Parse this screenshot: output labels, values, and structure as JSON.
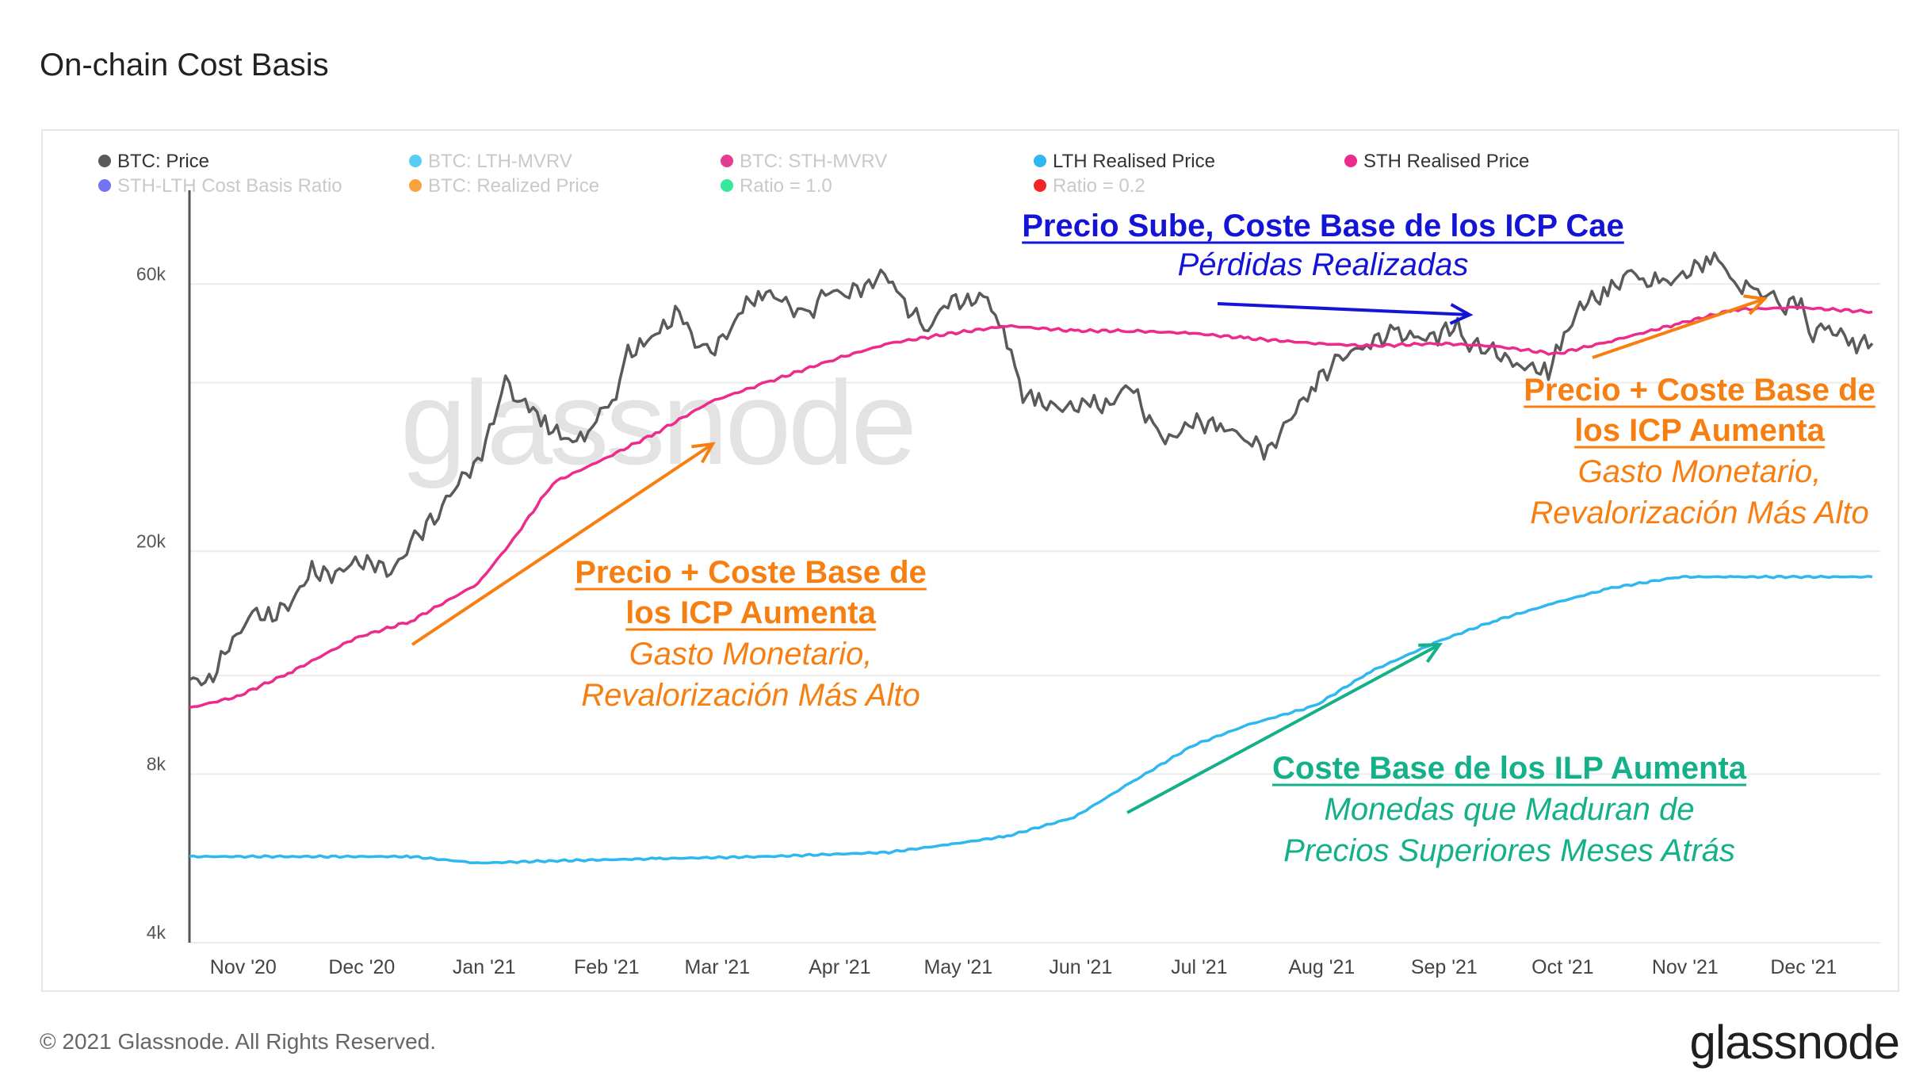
{
  "header": {
    "title": "On-chain Cost Basis"
  },
  "footer": {
    "copyright": "© 2021 Glassnode. All Rights Reserved.",
    "logo": "glassnode"
  },
  "watermark": "glassnode",
  "legend": [
    {
      "label": "BTC: Price",
      "color": "#5a5a5a",
      "active": true
    },
    {
      "label": "BTC: LTH-MVRV",
      "color": "#39c4f5",
      "active": false
    },
    {
      "label": "BTC: STH-MVRV",
      "color": "#e0197c",
      "active": false
    },
    {
      "label": "LTH Realised Price",
      "color": "#2fb8f0",
      "active": true
    },
    {
      "label": "STH Realised Price",
      "color": "#ec2b8c",
      "active": true
    },
    {
      "label": "STH-LTH Cost Basis Ratio",
      "color": "#5b5bf2",
      "active": false
    },
    {
      "label": "BTC: Realized Price",
      "color": "#f7931a",
      "active": false
    },
    {
      "label": "Ratio = 1.0",
      "color": "#12e48a",
      "active": false
    },
    {
      "label": "Ratio = 0.2",
      "color": "#f00000",
      "active": false
    }
  ],
  "annotations": {
    "blue": {
      "bold": "Precio Sube, Coste Base de los  ICP Cae",
      "italic": "Pérdidas Realizadas",
      "color": "#1414d6"
    },
    "orange_left": {
      "bold1": "Precio + Coste Base de",
      "bold2": "los ICP Aumenta",
      "italic1": "Gasto Monetario,",
      "italic2": "Revalorización Más Alto",
      "color": "#f77f12"
    },
    "orange_right": {
      "bold1": "Precio + Coste Base de",
      "bold2": "los ICP Aumenta",
      "italic1": "Gasto Monetario,",
      "italic2": "Revalorización Más Alto",
      "color": "#f77f12"
    },
    "green": {
      "bold": "Coste Base de los ILP Aumenta",
      "italic1": "Monedas que Maduran de",
      "italic2": "Precios Superiores Meses Atrás",
      "color": "#14b089"
    }
  },
  "chart_data": {
    "type": "line",
    "y_scale": "log",
    "ylim": [
      4000,
      80000
    ],
    "y_ticks": [
      {
        "value": 4000,
        "label": "4k"
      },
      {
        "value": 8000,
        "label": "8k"
      },
      {
        "value": 20000,
        "label": "20k"
      },
      {
        "value": 60000,
        "label": "60k"
      }
    ],
    "x_range": [
      "2020-10-20",
      "2021-12-22"
    ],
    "x_ticks": [
      {
        "date": "2020-11-01",
        "label": "Nov '20"
      },
      {
        "date": "2020-12-01",
        "label": "Dec '20"
      },
      {
        "date": "2021-01-01",
        "label": "Jan '21"
      },
      {
        "date": "2021-02-01",
        "label": "Feb '21"
      },
      {
        "date": "2021-03-01",
        "label": "Mar '21"
      },
      {
        "date": "2021-04-01",
        "label": "Apr '21"
      },
      {
        "date": "2021-05-01",
        "label": "May '21"
      },
      {
        "date": "2021-06-01",
        "label": "Jun '21"
      },
      {
        "date": "2021-07-01",
        "label": "Jul '21"
      },
      {
        "date": "2021-08-01",
        "label": "Aug '21"
      },
      {
        "date": "2021-09-01",
        "label": "Sep '21"
      },
      {
        "date": "2021-10-01",
        "label": "Oct '21"
      },
      {
        "date": "2021-11-01",
        "label": "Nov '21"
      },
      {
        "date": "2021-12-01",
        "label": "Dec '21"
      }
    ],
    "series": [
      {
        "name": "BTC: Price",
        "color": "#5a5a5a",
        "x": [
          "2020-10-20",
          "2020-10-25",
          "2020-10-30",
          "2020-11-05",
          "2020-11-10",
          "2020-11-15",
          "2020-11-20",
          "2020-11-25",
          "2020-11-30",
          "2020-12-05",
          "2020-12-10",
          "2020-12-16",
          "2020-12-22",
          "2020-12-27",
          "2021-01-01",
          "2021-01-05",
          "2021-01-08",
          "2021-01-11",
          "2021-01-14",
          "2021-01-18",
          "2021-01-22",
          "2021-01-26",
          "2021-01-30",
          "2021-02-05",
          "2021-02-08",
          "2021-02-12",
          "2021-02-16",
          "2021-02-21",
          "2021-02-25",
          "2021-02-28",
          "2021-03-05",
          "2021-03-09",
          "2021-03-13",
          "2021-03-18",
          "2021-03-25",
          "2021-03-30",
          "2021-04-05",
          "2021-04-10",
          "2021-04-14",
          "2021-04-18",
          "2021-04-25",
          "2021-04-30",
          "2021-05-05",
          "2021-05-10",
          "2021-05-13",
          "2021-05-16",
          "2021-05-19",
          "2021-05-23",
          "2021-05-28",
          "2021-06-05",
          "2021-06-10",
          "2021-06-15",
          "2021-06-22",
          "2021-06-26",
          "2021-07-01",
          "2021-07-08",
          "2021-07-15",
          "2021-07-20",
          "2021-07-25",
          "2021-08-01",
          "2021-08-07",
          "2021-08-14",
          "2021-08-21",
          "2021-08-27",
          "2021-09-01",
          "2021-09-06",
          "2021-09-08",
          "2021-09-14",
          "2021-09-21",
          "2021-09-29",
          "2021-10-03",
          "2021-10-07",
          "2021-10-14",
          "2021-10-20",
          "2021-10-24",
          "2021-10-28",
          "2021-11-02",
          "2021-11-09",
          "2021-11-12",
          "2021-11-16",
          "2021-11-20",
          "2021-11-25",
          "2021-11-28",
          "2021-12-02",
          "2021-12-04",
          "2021-12-08",
          "2021-12-12",
          "2021-12-16",
          "2021-12-20"
        ],
        "values": [
          11800,
          11700,
          13500,
          15500,
          15300,
          16300,
          18500,
          18000,
          19000,
          19200,
          18300,
          21000,
          23500,
          26500,
          29000,
          34000,
          40000,
          38000,
          36000,
          34000,
          32000,
          31000,
          34000,
          38000,
          45000,
          47000,
          49000,
          54000,
          47000,
          45000,
          48500,
          54000,
          58000,
          57000,
          52000,
          58000,
          58000,
          60000,
          63000,
          56000,
          50000,
          56000,
          56000,
          57000,
          50000,
          46000,
          38000,
          37000,
          36000,
          36500,
          36500,
          40000,
          32000,
          32000,
          34000,
          33500,
          31800,
          30000,
          34000,
          40000,
          44000,
          47000,
          49000,
          48000,
          48500,
          51000,
          47000,
          46000,
          43000,
          42000,
          48000,
          55000,
          58000,
          63000,
          61000,
          60000,
          62000,
          67000,
          64500,
          60000,
          58000,
          57000,
          55000,
          56000,
          49000,
          49500,
          49000,
          47000,
          47000
        ]
      },
      {
        "name": "STH Realised Price",
        "color": "#ec2b8c",
        "x": [
          "2020-10-20",
          "2020-11-01",
          "2020-11-15",
          "2020-12-01",
          "2020-12-15",
          "2021-01-01",
          "2021-01-10",
          "2021-01-20",
          "2021-02-01",
          "2021-02-15",
          "2021-03-01",
          "2021-03-15",
          "2021-04-01",
          "2021-04-15",
          "2021-05-01",
          "2021-05-15",
          "2021-06-01",
          "2021-06-15",
          "2021-07-01",
          "2021-07-15",
          "2021-08-01",
          "2021-08-15",
          "2021-09-01",
          "2021-09-15",
          "2021-10-01",
          "2021-10-15",
          "2021-11-01",
          "2021-11-15",
          "2021-12-01",
          "2021-12-20"
        ],
        "values": [
          10500,
          11000,
          12200,
          14000,
          15000,
          17500,
          21000,
          26500,
          29000,
          32500,
          37000,
          40000,
          44000,
          47000,
          49000,
          50500,
          49500,
          49500,
          49000,
          48000,
          47000,
          46500,
          47000,
          46500,
          45000,
          47500,
          51000,
          54000,
          54500,
          53500
        ]
      },
      {
        "name": "LTH Realised Price",
        "color": "#2fb8f0",
        "x": [
          "2020-10-20",
          "2020-11-15",
          "2020-12-15",
          "2021-01-01",
          "2021-01-20",
          "2021-02-15",
          "2021-03-15",
          "2021-04-15",
          "2021-05-01",
          "2021-05-15",
          "2021-06-01",
          "2021-06-15",
          "2021-07-01",
          "2021-07-15",
          "2021-08-01",
          "2021-08-15",
          "2021-09-01",
          "2021-09-15",
          "2021-10-01",
          "2021-10-15",
          "2021-11-01",
          "2021-11-15",
          "2021-12-01",
          "2021-12-20"
        ],
        "values": [
          5700,
          5700,
          5700,
          5550,
          5600,
          5650,
          5700,
          5800,
          6000,
          6200,
          6700,
          7700,
          9000,
          9800,
          10600,
          12200,
          13800,
          15000,
          16200,
          17200,
          18000,
          18000,
          18000,
          18000
        ]
      }
    ]
  }
}
